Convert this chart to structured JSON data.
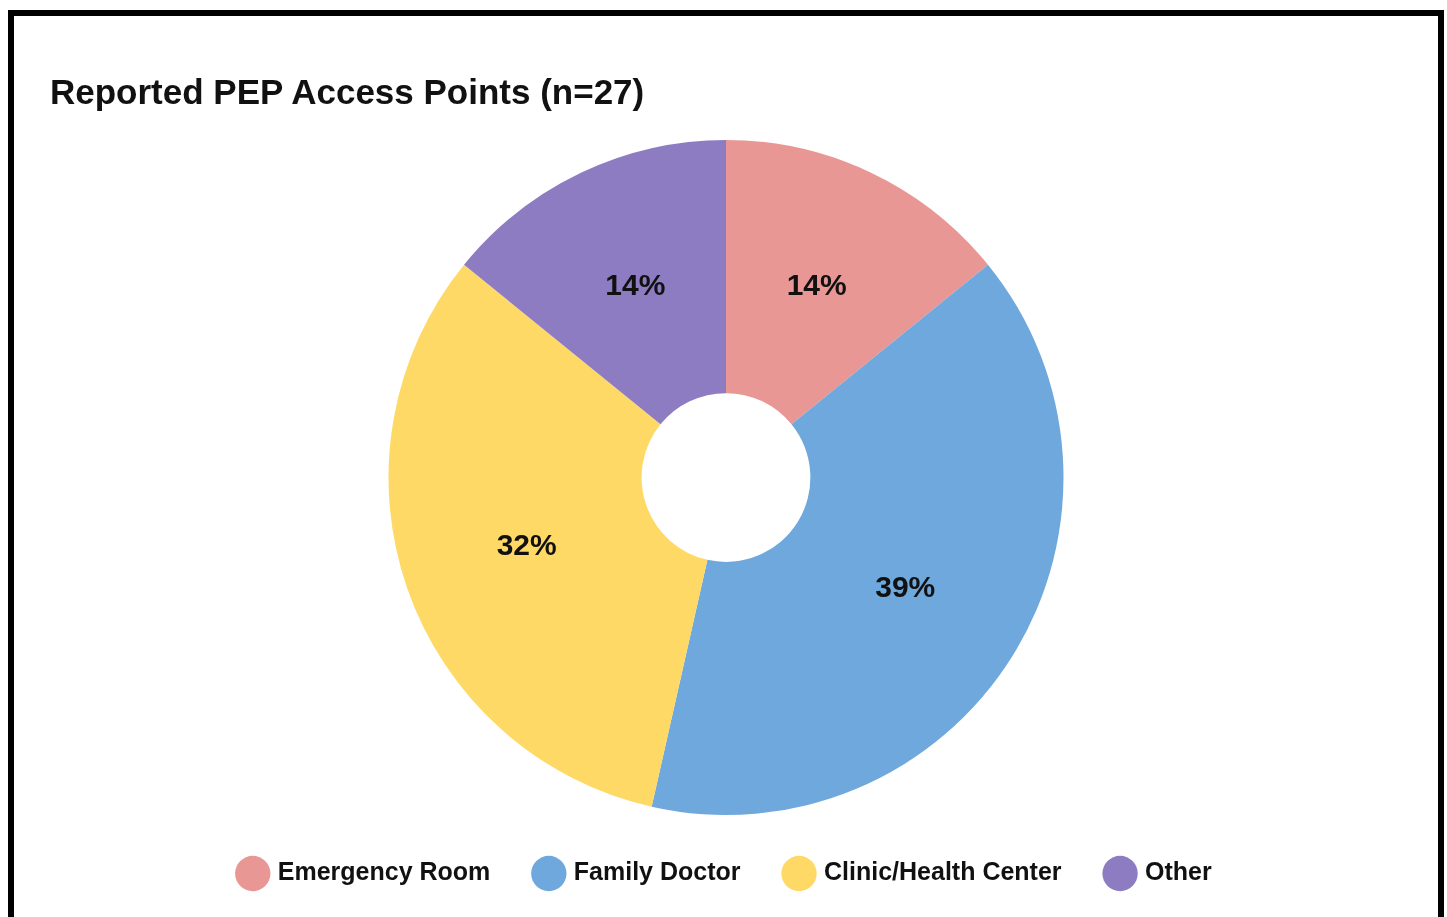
{
  "chart_data": {
    "type": "donut",
    "title": "Reported PEP Access Points (n=27)",
    "categories": [
      "Emergency Room",
      "Family Doctor",
      "Clinic/Health Center",
      "Other"
    ],
    "values": [
      14,
      39,
      32,
      14
    ],
    "colors": [
      "#e99795",
      "#6fa8dc",
      "#ffd966",
      "#8e7cc3"
    ],
    "value_labels": [
      "14%",
      "39%",
      "32%",
      "14%"
    ],
    "legend": "bottom"
  }
}
